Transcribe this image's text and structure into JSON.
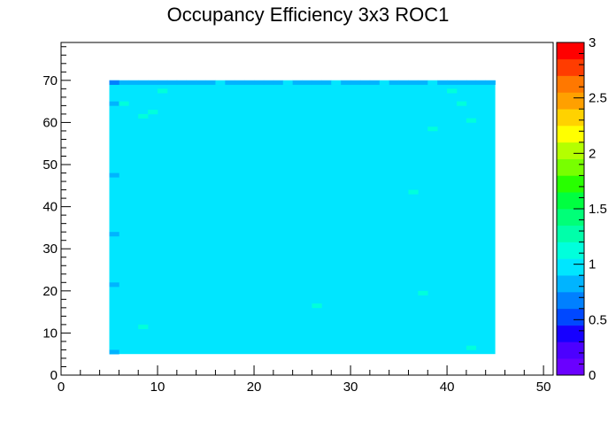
{
  "chart_data": {
    "type": "heatmap",
    "title": "Occupancy Efficiency 3x3 ROC1",
    "xlabel": "",
    "ylabel": "",
    "xlim": [
      0,
      51
    ],
    "ylim": [
      0,
      79
    ],
    "x_ticks": [
      0,
      10,
      20,
      30,
      40,
      50
    ],
    "y_ticks": [
      0,
      10,
      20,
      30,
      40,
      50,
      60,
      70
    ],
    "x_tick_labels": [
      "0",
      "10",
      "20",
      "30",
      "40",
      "50"
    ],
    "y_tick_labels": [
      "0",
      "10",
      "20",
      "30",
      "40",
      "50",
      "60",
      "70"
    ],
    "zlim": [
      0,
      3
    ],
    "z_ticks": [
      0,
      0.5,
      1,
      1.5,
      2,
      2.5,
      3
    ],
    "z_tick_labels": [
      "0",
      "0.5",
      "1",
      "1.5",
      "2",
      "2.5",
      "3"
    ],
    "bin_size": [
      1,
      1
    ],
    "filled_region": {
      "x": [
        5,
        45
      ],
      "y": [
        5,
        70
      ]
    },
    "base_value": 1.0,
    "deviations": [
      {
        "x": 5,
        "y": 5,
        "value": 0.85
      },
      {
        "x": 5,
        "y": 21,
        "value": 0.85
      },
      {
        "x": 5,
        "y": 33,
        "value": 0.85
      },
      {
        "x": 5,
        "y": 47,
        "value": 0.85
      },
      {
        "x": 5,
        "y": 64,
        "value": 0.85
      },
      {
        "x": 5,
        "y": 69,
        "value": 0.7
      },
      {
        "x": 6,
        "y": 64,
        "value": 1.1
      },
      {
        "x": 8,
        "y": 11,
        "value": 1.1
      },
      {
        "x": 8,
        "y": 61,
        "value": 1.1
      },
      {
        "x": 9,
        "y": 62,
        "value": 1.1
      },
      {
        "x": 10,
        "y": 67,
        "value": 1.1
      },
      {
        "x": 26,
        "y": 16,
        "value": 1.1
      },
      {
        "x": 36,
        "y": 43,
        "value": 1.1
      },
      {
        "x": 37,
        "y": 19,
        "value": 1.1
      },
      {
        "x": 38,
        "y": 58,
        "value": 1.1
      },
      {
        "x": 40,
        "y": 67,
        "value": 1.1
      },
      {
        "x": 41,
        "y": 64,
        "value": 1.1
      },
      {
        "x": 42,
        "y": 6,
        "value": 1.1
      },
      {
        "x": 42,
        "y": 60,
        "value": 1.1
      }
    ],
    "top_row": {
      "y": 69,
      "value": 0.85,
      "exceptions_x": [
        16,
        23,
        28,
        33,
        38
      ],
      "exception_value": 1.0
    },
    "palette": [
      "#6a00ff",
      "#4c00ff",
      "#1600ff",
      "#0048ff",
      "#0080ff",
      "#00b4ff",
      "#00e6ff",
      "#00ffdc",
      "#00ffaa",
      "#00ff78",
      "#00ff40",
      "#28ff00",
      "#78ff00",
      "#b4ff00",
      "#ffff00",
      "#ffd200",
      "#ffa000",
      "#ff7800",
      "#ff3c00",
      "#ff0000"
    ],
    "grid": false,
    "legend_position": "right"
  }
}
